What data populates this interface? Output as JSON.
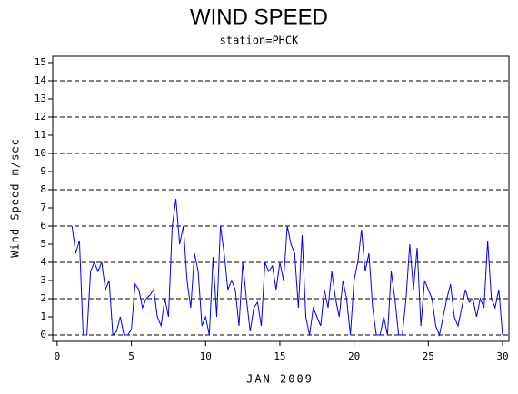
{
  "chart_data": {
    "type": "line",
    "title": "WIND SPEED",
    "subtitle": "station=PHCK",
    "x_label": "JAN 2009",
    "y_label": "Wind Speed m/sec",
    "x": [
      1,
      1.25,
      1.5,
      1.75,
      2,
      2.25,
      2.5,
      2.75,
      3,
      3.25,
      3.5,
      3.75,
      4,
      4.25,
      4.5,
      4.75,
      5,
      5.25,
      5.5,
      5.75,
      6,
      6.25,
      6.5,
      6.75,
      7,
      7.25,
      7.5,
      7.75,
      8,
      8.25,
      8.5,
      8.75,
      9,
      9.25,
      9.5,
      9.75,
      10,
      10.25,
      10.5,
      10.75,
      11,
      11.25,
      11.5,
      11.75,
      12,
      12.25,
      12.5,
      12.75,
      13,
      13.25,
      13.5,
      13.75,
      14,
      14.25,
      14.5,
      14.75,
      15,
      15.25,
      15.5,
      15.75,
      16,
      16.25,
      16.5,
      16.75,
      17,
      17.25,
      17.5,
      17.75,
      18,
      18.25,
      18.5,
      18.75,
      19,
      19.25,
      19.5,
      19.75,
      20,
      20.25,
      20.5,
      20.75,
      21,
      21.25,
      21.5,
      21.75,
      22,
      22.25,
      22.5,
      22.75,
      23,
      23.25,
      23.5,
      23.75,
      24,
      24.25,
      24.5,
      24.75,
      25,
      25.25,
      25.5,
      25.75,
      26,
      26.25,
      26.5,
      26.75,
      27,
      27.25,
      27.5,
      27.75,
      28,
      28.25,
      28.5,
      28.75,
      29,
      29.25,
      29.5,
      29.75,
      30
    ],
    "series": [
      {
        "name": "Wind Speed",
        "color": "#0000ff",
        "values": [
          6,
          4.5,
          5.2,
          0,
          0,
          3.5,
          4,
          3.5,
          4,
          2.5,
          3,
          0,
          0.2,
          1,
          0,
          0,
          0.3,
          2.8,
          2.5,
          1.5,
          2,
          2.2,
          2.5,
          1,
          0.5,
          2,
          1,
          6,
          7.5,
          5,
          6,
          3,
          1.5,
          4.5,
          3.5,
          0.5,
          1,
          0,
          4.3,
          1,
          6,
          4.5,
          2.5,
          3,
          2.5,
          0.5,
          4,
          2,
          0.2,
          1.5,
          1.8,
          0.5,
          4,
          3.5,
          3.8,
          2.5,
          4,
          3,
          6,
          5,
          4.5,
          1.5,
          5.5,
          1,
          0,
          1.5,
          1,
          0.5,
          2.5,
          1.5,
          3.5,
          2,
          1,
          3,
          2,
          0,
          3,
          4,
          5.8,
          3.5,
          4.5,
          1.5,
          0,
          0,
          1,
          0,
          3.5,
          2,
          0,
          0,
          2,
          5,
          2.5,
          4.8,
          0.5,
          3,
          2.5,
          2,
          0.5,
          0,
          1,
          2,
          2.8,
          1,
          0.5,
          1.5,
          2.5,
          1.8,
          2,
          1,
          2,
          1.5,
          5.2,
          2,
          1.5,
          2.5,
          0
        ]
      }
    ],
    "xlim": [
      -0.3,
      30.43
    ],
    "ylim": [
      -0.35,
      15.35
    ],
    "xticks": [
      0,
      5,
      10,
      15,
      20,
      25,
      30
    ],
    "yticks": [
      0,
      1,
      2,
      3,
      4,
      5,
      6,
      7,
      8,
      9,
      10,
      11,
      12,
      13,
      14,
      15
    ],
    "grid_values": [
      0,
      2,
      4,
      6,
      8,
      10,
      12,
      14
    ]
  }
}
